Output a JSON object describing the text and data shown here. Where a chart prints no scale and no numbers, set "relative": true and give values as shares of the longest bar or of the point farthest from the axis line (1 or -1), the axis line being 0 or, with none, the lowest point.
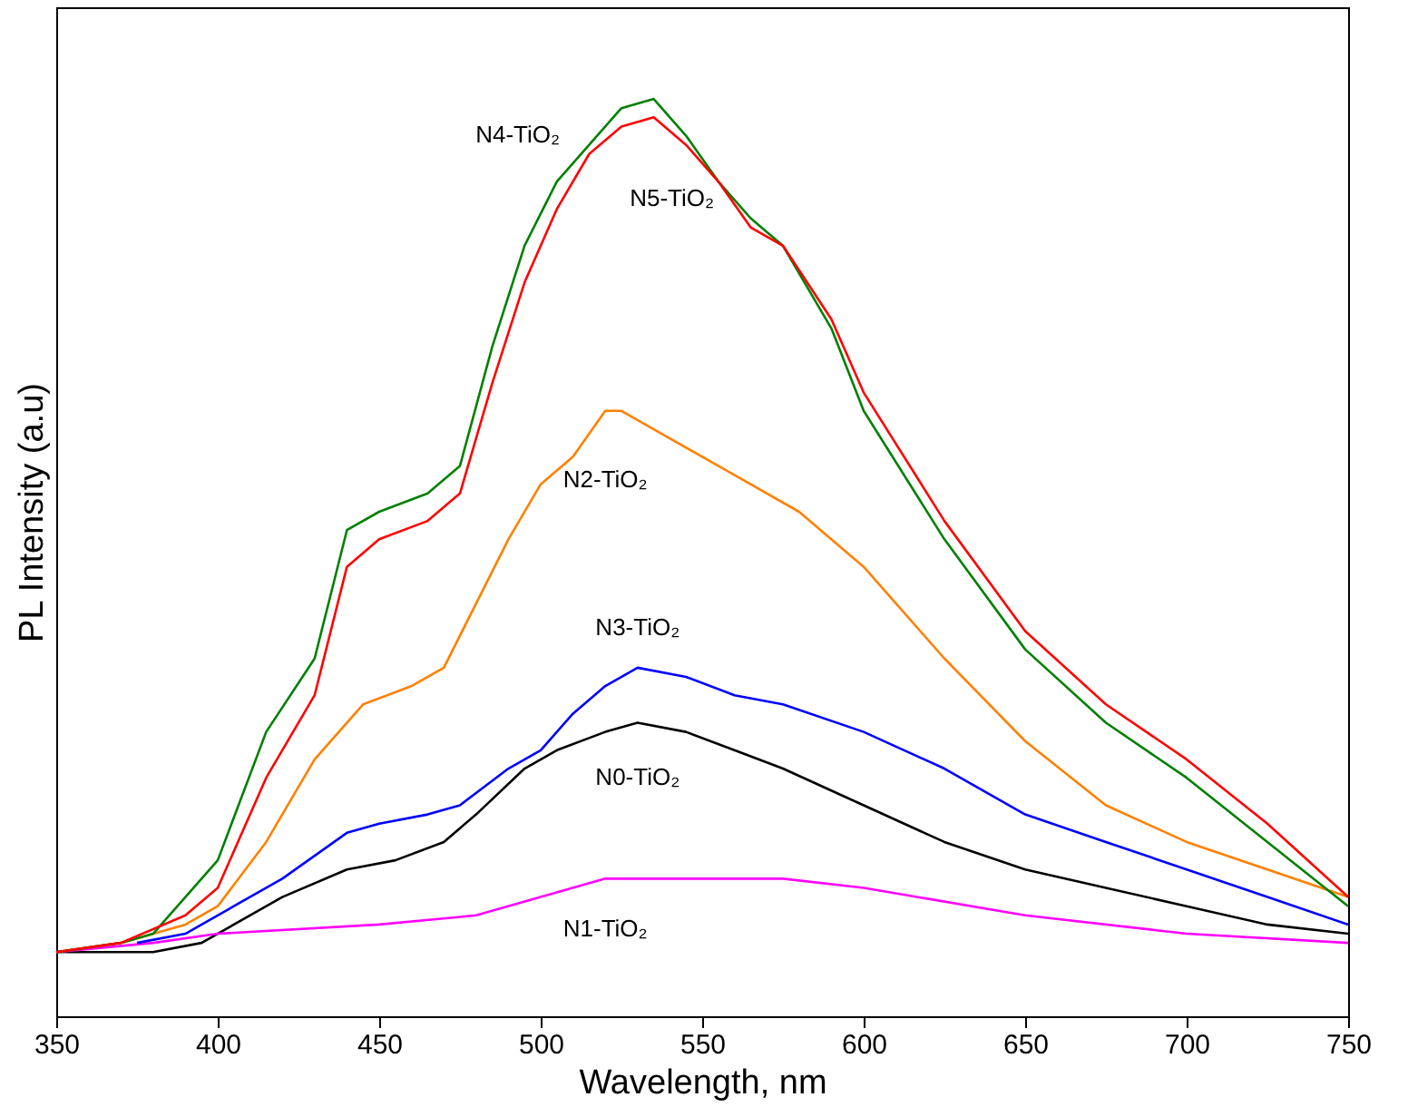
{
  "chart_data": {
    "type": "line",
    "xlabel": "Wavelength, nm",
    "ylabel": "PL Intensity (a.u)",
    "relative": true,
    "xlim": [
      350,
      750
    ],
    "xticks": [
      350,
      400,
      450,
      500,
      550,
      600,
      650,
      700,
      750
    ],
    "legend": false,
    "grid": false,
    "marker": "none",
    "line_style": "solid",
    "series": [
      {
        "name": "N0-TiO₂",
        "color": "#000000",
        "x": [
          350,
          380,
          395,
          405,
          420,
          440,
          455,
          470,
          480,
          495,
          505,
          520,
          530,
          545,
          560,
          575,
          600,
          625,
          650,
          675,
          700,
          725,
          750
        ],
        "values": [
          0.07,
          0.07,
          0.08,
          0.1,
          0.13,
          0.16,
          0.17,
          0.19,
          0.22,
          0.27,
          0.29,
          0.31,
          0.32,
          0.31,
          0.29,
          0.27,
          0.23,
          0.19,
          0.16,
          0.14,
          0.12,
          0.1,
          0.09
        ]
      },
      {
        "name": "N1-TiO₂",
        "color": "#ff00ff",
        "x": [
          350,
          380,
          400,
          450,
          480,
          500,
          520,
          530,
          550,
          575,
          600,
          650,
          700,
          750
        ],
        "values": [
          0.07,
          0.08,
          0.09,
          0.1,
          0.11,
          0.13,
          0.15,
          0.15,
          0.15,
          0.15,
          0.14,
          0.11,
          0.09,
          0.08
        ]
      },
      {
        "name": "N2-TiO₂",
        "color": "#ff8000",
        "x": [
          350,
          370,
          390,
          400,
          415,
          430,
          445,
          460,
          470,
          480,
          490,
          500,
          510,
          520,
          525,
          535,
          550,
          565,
          580,
          600,
          625,
          650,
          675,
          700,
          725,
          750
        ],
        "values": [
          0.07,
          0.08,
          0.1,
          0.12,
          0.19,
          0.28,
          0.34,
          0.36,
          0.38,
          0.45,
          0.52,
          0.58,
          0.61,
          0.66,
          0.66,
          0.64,
          0.61,
          0.58,
          0.55,
          0.49,
          0.39,
          0.3,
          0.23,
          0.19,
          0.16,
          0.13
        ]
      },
      {
        "name": "N3-TiO₂",
        "color": "#0000ff",
        "x": [
          375,
          390,
          400,
          420,
          440,
          450,
          465,
          475,
          490,
          500,
          510,
          520,
          530,
          545,
          560,
          575,
          600,
          625,
          650,
          675,
          700,
          725,
          750
        ],
        "values": [
          0.08,
          0.09,
          0.11,
          0.15,
          0.2,
          0.21,
          0.22,
          0.23,
          0.27,
          0.29,
          0.33,
          0.36,
          0.38,
          0.37,
          0.35,
          0.34,
          0.31,
          0.27,
          0.22,
          0.19,
          0.16,
          0.13,
          0.1
        ]
      },
      {
        "name": "N4-TiO₂",
        "color": "#008000",
        "x": [
          350,
          370,
          380,
          390,
          400,
          415,
          430,
          440,
          450,
          465,
          475,
          485,
          495,
          505,
          515,
          525,
          535,
          545,
          555,
          565,
          575,
          590,
          600,
          625,
          650,
          675,
          700,
          725,
          750
        ],
        "values": [
          0.07,
          0.08,
          0.09,
          0.13,
          0.17,
          0.31,
          0.39,
          0.53,
          0.55,
          0.57,
          0.6,
          0.73,
          0.84,
          0.91,
          0.95,
          0.99,
          1.0,
          0.96,
          0.91,
          0.87,
          0.84,
          0.75,
          0.66,
          0.52,
          0.4,
          0.32,
          0.26,
          0.19,
          0.12
        ]
      },
      {
        "name": "N5-TiO₂",
        "color": "#ff0000",
        "x": [
          350,
          370,
          390,
          400,
          415,
          430,
          440,
          450,
          465,
          475,
          485,
          495,
          505,
          515,
          525,
          535,
          545,
          555,
          565,
          575,
          590,
          600,
          625,
          650,
          675,
          700,
          725,
          750
        ],
        "values": [
          0.07,
          0.08,
          0.11,
          0.14,
          0.26,
          0.35,
          0.49,
          0.52,
          0.54,
          0.57,
          0.69,
          0.8,
          0.88,
          0.94,
          0.97,
          0.98,
          0.95,
          0.91,
          0.86,
          0.84,
          0.76,
          0.68,
          0.54,
          0.42,
          0.34,
          0.28,
          0.21,
          0.13
        ]
      }
    ]
  }
}
